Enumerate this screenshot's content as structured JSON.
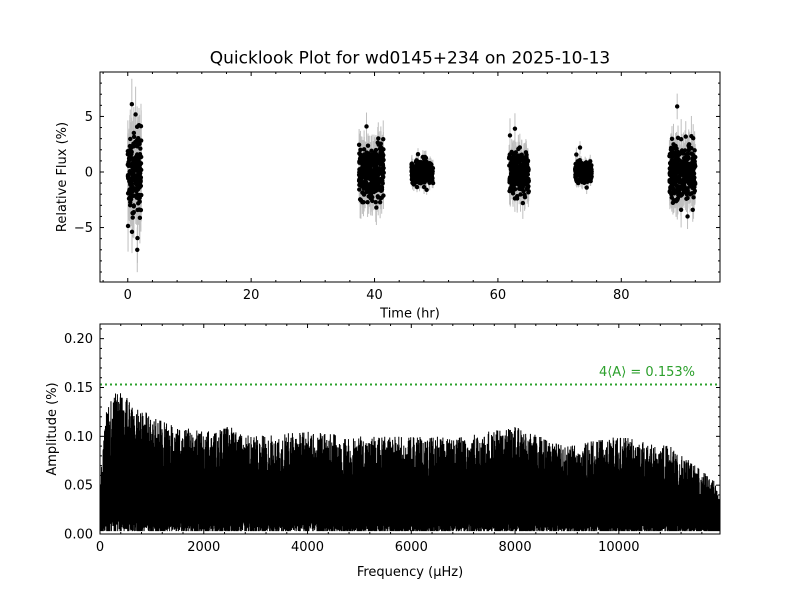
{
  "title": "Quicklook Plot for wd0145+234 on 2025-10-13",
  "colors": {
    "points": "#000000",
    "errorbars": "#bfbfbf",
    "threshold": "#2ca02c"
  },
  "chart_data": [
    {
      "type": "scatter",
      "xlabel": "Time (hr)",
      "ylabel": "Relative Flux (%)",
      "xlim": [
        -4.5,
        96
      ],
      "ylim": [
        -9.9,
        9.0
      ],
      "xticks": [
        0,
        20,
        40,
        60,
        80
      ],
      "xtick_labels": [
        "0",
        "20",
        "40",
        "60",
        "80"
      ],
      "yticks": [
        -5,
        0,
        5
      ],
      "ytick_labels": [
        "−5",
        "0",
        "5"
      ],
      "grid": false,
      "observing_blocks": [
        {
          "t_start": 0.0,
          "t_end": 2.2,
          "flux_spread": 2.2,
          "max_flux": 6.1,
          "min_flux": -7.0
        },
        {
          "t_start": 37.5,
          "t_end": 41.5,
          "flux_spread": 1.4,
          "max_flux": 4.1,
          "min_flux": -3.2
        },
        {
          "t_start": 46.0,
          "t_end": 49.5,
          "flux_spread": 0.6,
          "max_flux": 1.6,
          "min_flux": -1.6
        },
        {
          "t_start": 61.8,
          "t_end": 65.0,
          "flux_spread": 1.2,
          "max_flux": 3.9,
          "min_flux": -2.8
        },
        {
          "t_start": 72.5,
          "t_end": 75.2,
          "flux_spread": 0.5,
          "max_flux": 2.2,
          "min_flux": -1.4
        },
        {
          "t_start": 87.8,
          "t_end": 92.0,
          "flux_spread": 1.5,
          "max_flux": 5.9,
          "min_flux": -4.0
        }
      ]
    },
    {
      "type": "line",
      "xlabel": "Frequency (μHz)",
      "ylabel": "Amplitude (%)",
      "xlim": [
        0,
        11950
      ],
      "ylim": [
        0,
        0.215
      ],
      "xticks": [
        0,
        2000,
        4000,
        6000,
        8000,
        10000
      ],
      "xtick_labels": [
        "0",
        "2000",
        "4000",
        "6000",
        "8000",
        "10000"
      ],
      "yticks": [
        0,
        0.05,
        0.1,
        0.15,
        0.2
      ],
      "ytick_labels": [
        "0.00",
        "0.05",
        "0.10",
        "0.15",
        "0.20"
      ],
      "grid": false,
      "threshold": {
        "value": 0.153,
        "label": "4⟨A⟩ = 0.153%"
      },
      "envelope": {
        "x": [
          0,
          100,
          250,
          500,
          800,
          1000,
          1500,
          2000,
          2500,
          3000,
          4000,
          5000,
          6000,
          7000,
          8000,
          9000,
          10000,
          11000,
          11950
        ],
        "peak": [
          0.05,
          0.12,
          0.15,
          0.14,
          0.13,
          0.12,
          0.11,
          0.105,
          0.11,
          0.1,
          0.105,
          0.1,
          0.1,
          0.1,
          0.11,
          0.09,
          0.1,
          0.09,
          0.05
        ]
      }
    }
  ]
}
